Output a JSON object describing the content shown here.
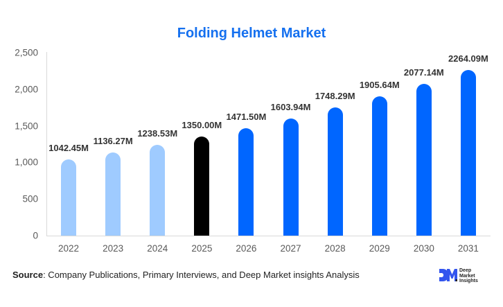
{
  "title": "Folding Helmet Market",
  "footer": {
    "source_label": "Source",
    "source_text": ": Company Publications, Primary Interviews, and Deep Market insights Analysis"
  },
  "logo": {
    "mark": "DM",
    "line1": "Deep",
    "line2": "Market",
    "line3": "Insights",
    "color": "#3355ee"
  },
  "colors": {
    "title": "#1570ef",
    "historical": "#9fcbff",
    "base_year": "#000000",
    "forecast": "#0066ff"
  },
  "chart_data": {
    "type": "bar",
    "title": "Folding Helmet Market",
    "xlabel": "",
    "ylabel": "",
    "categories": [
      "2022",
      "2023",
      "2024",
      "2025",
      "2026",
      "2027",
      "2028",
      "2029",
      "2030",
      "2031"
    ],
    "values": [
      1042.45,
      1136.27,
      1238.53,
      1350.0,
      1471.5,
      1603.94,
      1748.29,
      1905.64,
      2077.14,
      2264.09
    ],
    "data_labels": [
      "1042.45M",
      "1136.27M",
      "1238.53M",
      "1350.00M",
      "1471.50M",
      "1603.94M",
      "1748.29M",
      "1905.64M",
      "2077.14M",
      "2264.09M"
    ],
    "bar_colors": [
      "#9fcbff",
      "#9fcbff",
      "#9fcbff",
      "#000000",
      "#0066ff",
      "#0066ff",
      "#0066ff",
      "#0066ff",
      "#0066ff",
      "#0066ff"
    ],
    "unit": "USD Million",
    "ylim": [
      0,
      2500
    ],
    "yticks": [
      0,
      500,
      1000,
      1500,
      2000,
      2500
    ],
    "ytick_labels": [
      "0",
      "500",
      "1,000",
      "1,500",
      "2,000",
      "2,500"
    ],
    "grid": false,
    "legend": null
  }
}
